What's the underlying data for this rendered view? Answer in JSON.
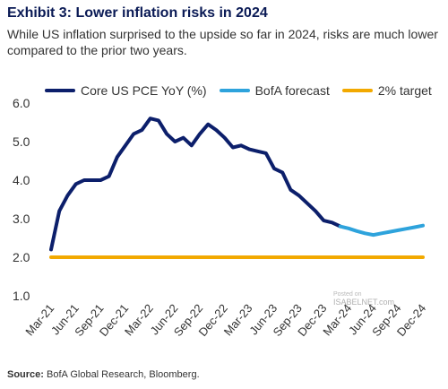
{
  "header": {
    "title": "Exhibit 3: Lower inflation risks in 2024",
    "subtitle": "While US inflation surprised to the upside so far in 2024, risks are much lower compared to the prior two years."
  },
  "legend": {
    "items": [
      {
        "label": "Core US PCE YoY (%)",
        "color": "#0c1f6b"
      },
      {
        "label": "BofA forecast",
        "color": "#2ea3dc"
      },
      {
        "label": "2% target",
        "color": "#f2a900"
      }
    ]
  },
  "watermark": {
    "line1": "Posted on",
    "line2": "ISABELNET.com"
  },
  "source": {
    "label": "Source:",
    "text": "BofA Global Research, Bloomberg."
  },
  "chart_data": {
    "type": "line",
    "xlabel": "",
    "ylabel": "",
    "ylim": [
      1.0,
      6.0
    ],
    "yticks": [
      "1.0",
      "2.0",
      "3.0",
      "4.0",
      "5.0",
      "6.0"
    ],
    "x_tick_labels": [
      "Mar-21",
      "Jun-21",
      "Sep-21",
      "Dec-21",
      "Mar-22",
      "Jun-22",
      "Sep-22",
      "Dec-22",
      "Mar-23",
      "Jun-23",
      "Sep-23",
      "Dec-23",
      "Mar-24",
      "Jun-24",
      "Sep-24",
      "Dec-24"
    ],
    "grid": false,
    "legend_position": "top",
    "series": [
      {
        "name": "Core US PCE YoY (%)",
        "color": "#0c1f6b",
        "x": [
          "Mar-21",
          "Apr-21",
          "May-21",
          "Jun-21",
          "Jul-21",
          "Aug-21",
          "Sep-21",
          "Oct-21",
          "Nov-21",
          "Dec-21",
          "Jan-22",
          "Feb-22",
          "Mar-22",
          "Apr-22",
          "May-22",
          "Jun-22",
          "Jul-22",
          "Aug-22",
          "Sep-22",
          "Oct-22",
          "Nov-22",
          "Dec-22",
          "Jan-23",
          "Feb-23",
          "Mar-23",
          "Apr-23",
          "May-23",
          "Jun-23",
          "Jul-23",
          "Aug-23",
          "Sep-23",
          "Oct-23",
          "Nov-23",
          "Dec-23",
          "Jan-24",
          "Feb-24"
        ],
        "values": [
          2.2,
          3.2,
          3.6,
          3.9,
          4.0,
          4.0,
          4.0,
          4.1,
          4.6,
          4.9,
          5.2,
          5.3,
          5.6,
          5.55,
          5.2,
          5.0,
          5.1,
          4.9,
          5.2,
          5.45,
          5.3,
          5.1,
          4.85,
          4.9,
          4.8,
          4.75,
          4.7,
          4.3,
          4.2,
          3.75,
          3.6,
          3.4,
          3.2,
          2.95,
          2.9,
          2.8
        ]
      },
      {
        "name": "BofA forecast",
        "color": "#2ea3dc",
        "x": [
          "Feb-24",
          "Mar-24",
          "Apr-24",
          "May-24",
          "Jun-24",
          "Jul-24",
          "Aug-24",
          "Sep-24",
          "Oct-24",
          "Nov-24",
          "Dec-24"
        ],
        "values": [
          2.8,
          2.75,
          2.68,
          2.62,
          2.58,
          2.62,
          2.66,
          2.7,
          2.74,
          2.78,
          2.82
        ]
      },
      {
        "name": "2% target",
        "color": "#f2a900",
        "x": [
          "Mar-21",
          "Dec-24"
        ],
        "values": [
          2.0,
          2.0
        ]
      }
    ]
  }
}
